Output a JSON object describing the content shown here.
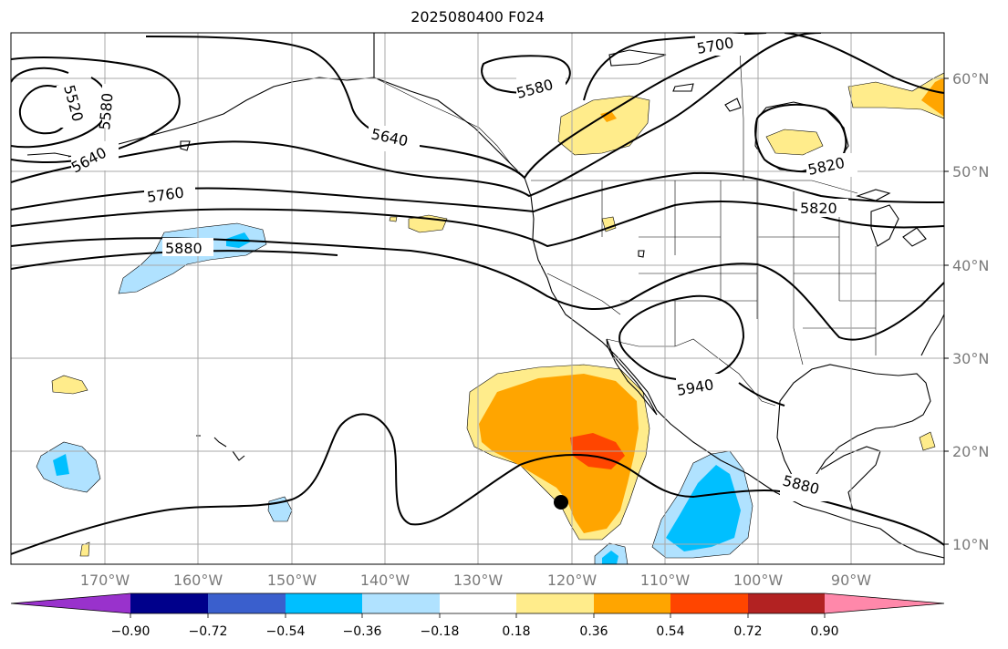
{
  "title": "2025080400 F024",
  "lon_ticks": [
    "170°W",
    "160°W",
    "150°W",
    "140°W",
    "130°W",
    "120°W",
    "110°W",
    "100°W",
    "90°W"
  ],
  "lat_ticks": [
    "60°N",
    "50°N",
    "40°N",
    "30°N",
    "20°N",
    "10°N"
  ],
  "contour_labels": [
    "5520",
    "5580",
    "5640",
    "5760",
    "5880",
    "5640",
    "5580",
    "5700",
    "5820",
    "5820",
    "5940",
    "5880"
  ],
  "colorbar": {
    "colors": [
      "#9932cc",
      "#00008b",
      "#3a5fcd",
      "#00bfff",
      "#b0e2ff",
      "#ffffff",
      "#ffec8b",
      "#ffa500",
      "#ff4500",
      "#b22222",
      "#ff88aa"
    ],
    "labels": [
      "−0.90",
      "−0.72",
      "−0.54",
      "−0.36",
      "−0.18",
      "0.18",
      "0.36",
      "0.54",
      "0.72",
      "0.90"
    ]
  },
  "shading_colors": {
    "light_blue": "#b0e2ff",
    "blue": "#00bfff",
    "light_yellow": "#ffec8b",
    "orange": "#ffa500",
    "red_orange": "#ff4500"
  }
}
